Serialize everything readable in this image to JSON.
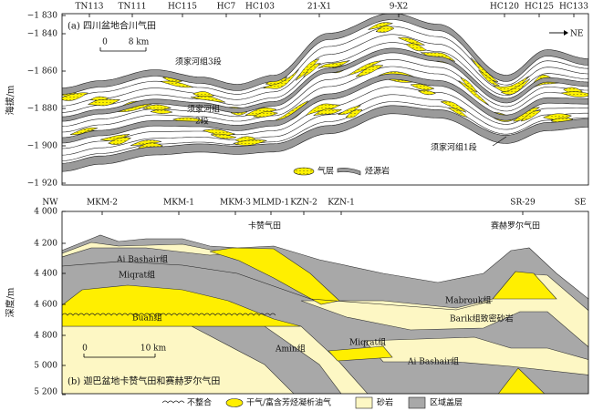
{
  "panel_a": {
    "caption": "(a) 四川盆地合川气田",
    "y_label": "海拔/m",
    "y_ticks": [
      "−1 830",
      "−1 840",
      "−1 860",
      "−1 880",
      "−1 900",
      "−1 920"
    ],
    "wells": [
      "TN113",
      "TN111",
      "HC115",
      "HC7",
      "HC103",
      "21-X1",
      "9-X2",
      "HC120",
      "HC125",
      "HC133"
    ],
    "direction": "NE",
    "scale_bar": {
      "zero": "0",
      "length": "8 km"
    },
    "labels": [
      "须家河组3段",
      "须家河组",
      "2段",
      "须家河组1段"
    ],
    "legend": [
      "气层",
      "烃源岩"
    ]
  },
  "panel_b": {
    "caption": "(b) 迦巴盆地卡赞气田和赛赫罗尔气田",
    "y_label": "深度/m",
    "y_ticks": [
      "4 000",
      "4 200",
      "4 400",
      "4 600",
      "4 800",
      "5 000",
      "5 200"
    ],
    "wells": [
      "NW",
      "MKM-2",
      "MKM-1",
      "MKM-3",
      "MLMD-1",
      "KZN-2",
      "KZN-1",
      "SR-29",
      "SE"
    ],
    "fields": [
      "卡赞气田",
      "赛赫罗尔气田"
    ],
    "scale_bar": {
      "zero": "0",
      "length": "10 km"
    },
    "labels": [
      "Ai Bashair组",
      "Miqrat组",
      "Buah组",
      "Amin组",
      "Mabrouk组",
      "Barik组致密砂岩",
      "Miqrat组",
      "Ai Bashair组"
    ]
  },
  "legend": [
    "不整合",
    "干气/富含芳烃凝析油气",
    "砂岩",
    "区域盖层"
  ]
}
